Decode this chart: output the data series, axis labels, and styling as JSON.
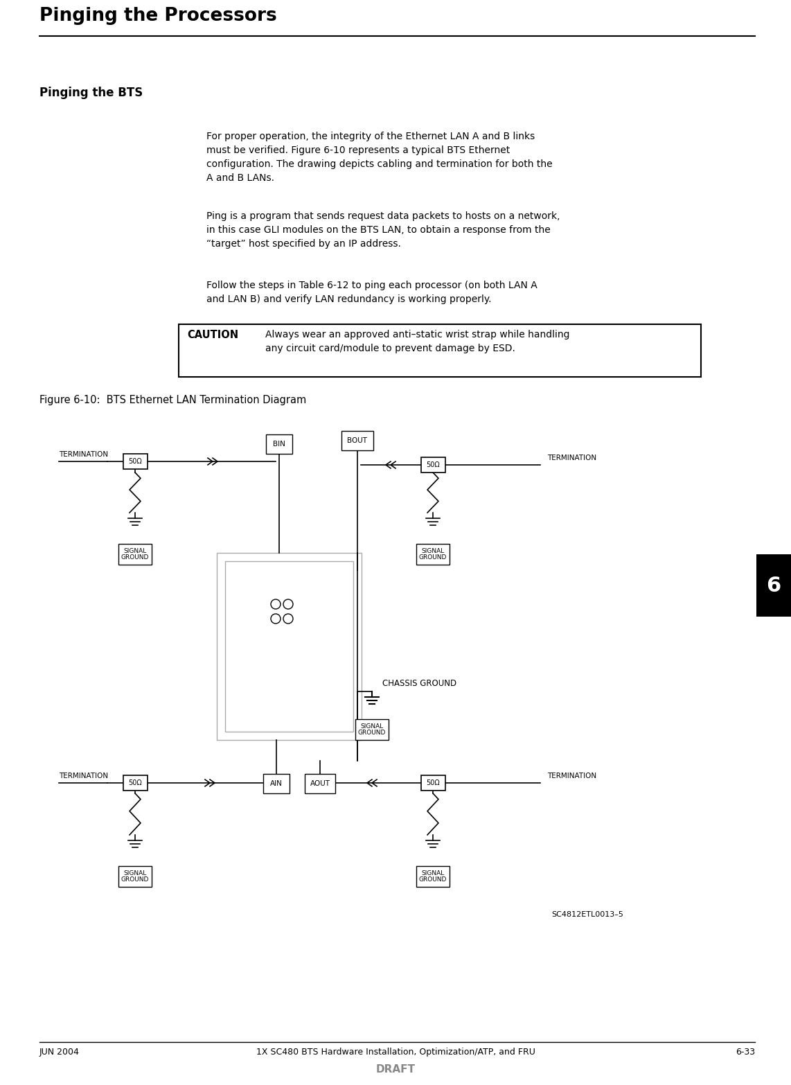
{
  "title": "Pinging the Processors",
  "subtitle": "Pinging the BTS",
  "body_paragraphs": [
    "For proper operation, the integrity of the Ethernet LAN A and B links\nmust be verified. Figure 6-10 represents a typical BTS Ethernet\nconfiguration. The drawing depicts cabling and termination for both the\nA and B LANs.",
    "Ping is a program that sends request data packets to hosts on a network,\nin this case GLI modules on the BTS LAN, to obtain a response from the\n“target” host specified by an IP address.",
    "Follow the steps in Table 6-12 to ping each processor (on both LAN A\nand LAN B) and verify LAN redundancy is working properly."
  ],
  "caution_label": "CAUTION",
  "caution_text": "Always wear an approved anti–static wrist strap while handling\nany circuit card/module to prevent damage by ESD.",
  "figure_label": "Figure 6-10:  BTS Ethernet LAN Termination Diagram",
  "figure_id": "SC4812ETL0013–5",
  "footer_left": "JUN 2004",
  "footer_center": "1X SC480 BTS Hardware Installation, Optimization/ATP, and FRU",
  "footer_right": "6-33",
  "footer_draft": "DRAFT",
  "tab_number": "6",
  "background_color": "#ffffff",
  "text_color": "#000000"
}
